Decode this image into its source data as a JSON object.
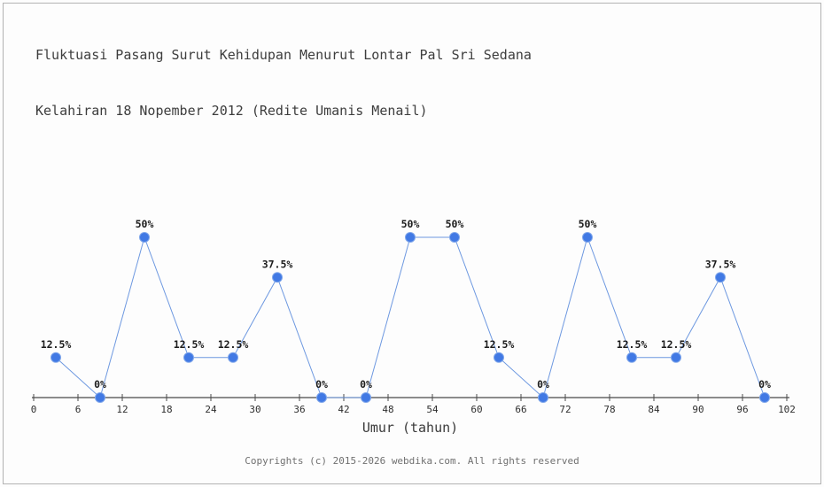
{
  "page": {
    "title_line1": "Fluktuasi Pasang Surut Kehidupan Menurut Lontar Pal Sri Sedana",
    "title_line2": "Kelahiran 18 Nopember 2012 (Redite Umanis Menail)",
    "footer": "Copyrights (c) 2015-2026 webdika.com. All rights reserved"
  },
  "chart_data": {
    "type": "line",
    "title": "Fluktuasi Pasang Surut Kehidupan Menurut Lontar Pal Sri Sedana Kelahiran 18 Nopember 2012 (Redite Umanis Menail)",
    "xlabel": "Umur (tahun)",
    "ylabel": "",
    "x": [
      3,
      9,
      15,
      21,
      27,
      33,
      39,
      45,
      51,
      57,
      63,
      69,
      75,
      81,
      87,
      93,
      99
    ],
    "values": [
      12.5,
      0,
      50,
      12.5,
      12.5,
      37.5,
      0,
      0,
      50,
      50,
      12.5,
      0,
      50,
      12.5,
      12.5,
      37.5,
      0
    ],
    "point_labels": [
      "12.5%",
      "0%",
      "50%",
      "12.5%",
      "12.5%",
      "37.5%",
      "0%",
      "0%",
      "50%",
      "50%",
      "12.5%",
      "0%",
      "50%",
      "12.5%",
      "12.5%",
      "37.5%",
      "0%"
    ],
    "x_ticks": [
      0,
      6,
      12,
      18,
      24,
      30,
      36,
      42,
      48,
      54,
      60,
      66,
      72,
      78,
      84,
      90,
      96,
      102
    ],
    "xlim": [
      0,
      102
    ],
    "ylim": [
      0,
      100
    ],
    "grid": false,
    "legend": false,
    "colors": {
      "line": "#6d98e0",
      "marker": "#4179e4",
      "marker_edge": "#7fa6ea",
      "axis": "#4a4a4a"
    }
  }
}
